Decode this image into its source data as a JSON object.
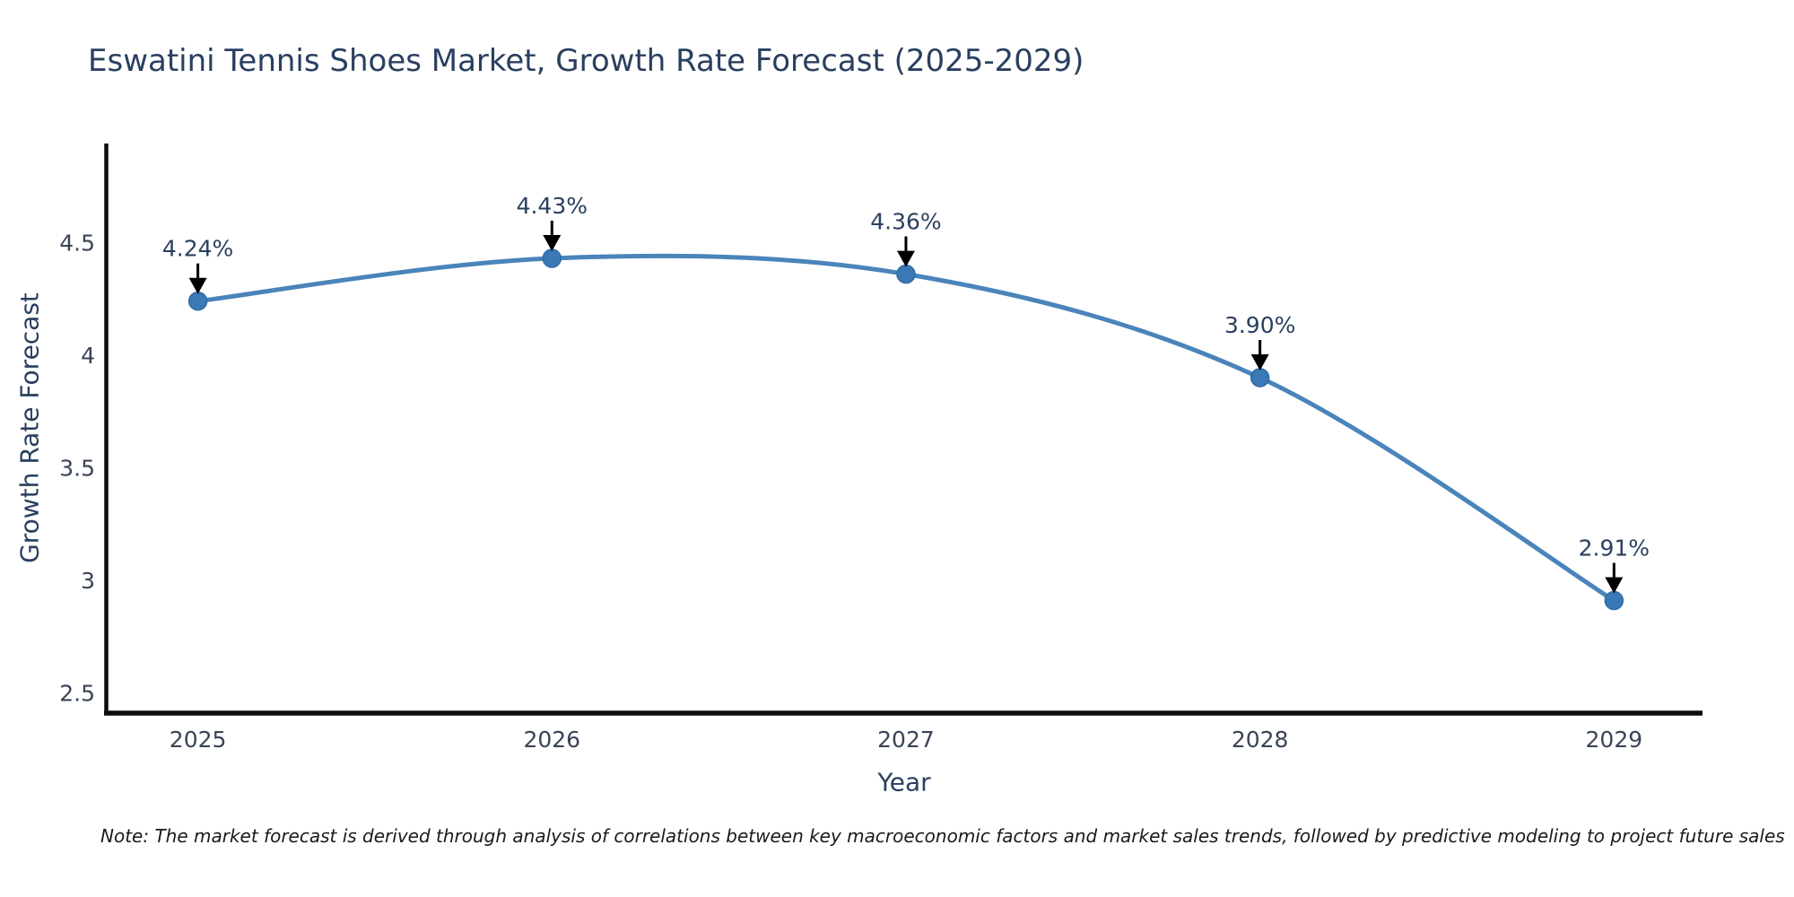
{
  "header": {
    "title": "Eswatini Tennis Shoes Market, Growth Rate Forecast (2025-2029)"
  },
  "chart_data": {
    "type": "line",
    "title": "Eswatini Tennis Shoes Market, Growth Rate Forecast (2025-2029)",
    "xlabel": "Year",
    "ylabel": "Growth Rate Forecast",
    "x": [
      2025,
      2026,
      2027,
      2028,
      2029
    ],
    "y": [
      4.24,
      4.43,
      4.36,
      3.9,
      2.91
    ],
    "point_labels": [
      "4.24%",
      "4.43%",
      "4.36%",
      "3.90%",
      "2.91%"
    ],
    "xtick_labels": [
      "2025",
      "2026",
      "2027",
      "2028",
      "2029"
    ],
    "yticks": [
      4.5,
      4,
      3.5,
      3,
      2.5
    ],
    "ytick_labels": [
      "4.5",
      "4",
      "3.5",
      "3",
      "2.5"
    ],
    "xlim": [
      2024.74,
      2029.25
    ],
    "ylim": [
      2.41,
      4.94
    ],
    "grid": false,
    "legend_position": "none",
    "line_shape": "spline",
    "colors": {
      "line": "#4a84ba",
      "marker": "#3a79b5",
      "marker_edge": "#2f6ca6",
      "arrow": "#000000",
      "annotation_text": "#2a3f5f",
      "axis_line": "#0d0d0d",
      "tick_text": "#3a4456",
      "title_text": "#2a3f5f",
      "background": "#ffffff"
    }
  },
  "note": {
    "text": "Note: The market forecast is derived through analysis of correlations between key macroeconomic factors and market sales trends, followed by predictive modeling to project future sales"
  }
}
